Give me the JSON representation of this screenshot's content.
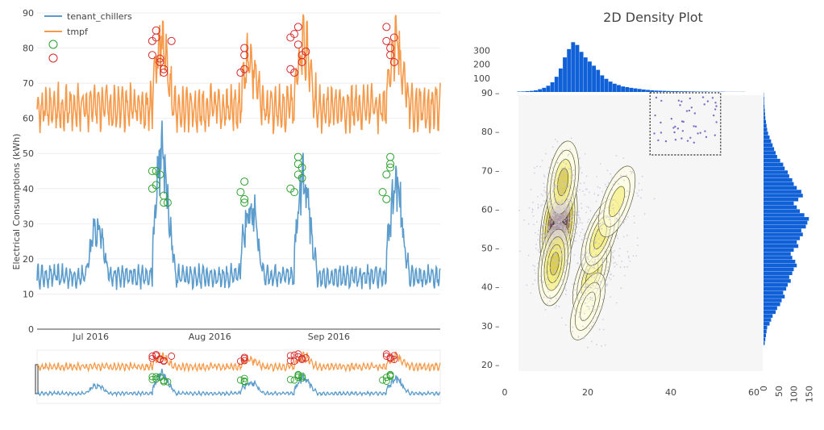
{
  "chart_data": [
    {
      "type": "line",
      "title": "",
      "xlabel": "",
      "ylabel": "Electrical Consumptions (kWh)",
      "ylim": [
        0,
        90
      ],
      "yticks": [
        0,
        10,
        20,
        30,
        40,
        50,
        60,
        70,
        80,
        90
      ],
      "xticks": [
        "Jul 2016",
        "Aug 2016",
        "Sep 2016"
      ],
      "x_range": [
        "2016-06-17",
        "2016-09-30"
      ],
      "grid": true,
      "legend": "top-left",
      "series": [
        {
          "name": "tenant_chillers",
          "color": "#5b9ccc",
          "approx_profile": {
            "base": 15,
            "spikes": [
              [
                "2016-07-18",
                62
              ],
              [
                "2016-08-10",
                44
              ],
              [
                "2016-08-24",
                49
              ],
              [
                "2016-09-17",
                48
              ],
              [
                "2016-07-01",
                33
              ]
            ]
          }
        },
        {
          "name": "tmpf",
          "color": "#f59a4a",
          "approx_profile": {
            "base": 63,
            "amplitude": 6,
            "spikes": [
              [
                "2016-07-18",
                86
              ],
              [
                "2016-08-10",
                80
              ],
              [
                "2016-08-24",
                86
              ],
              [
                "2016-09-17",
                86
              ]
            ]
          }
        }
      ],
      "anomaly_markers": [
        {
          "series": "tenant_chillers",
          "color": "#2ca02c",
          "points": [
            [
              "2016-07-17",
              40
            ],
            [
              "2016-07-17",
              45
            ],
            [
              "2016-07-18",
              41
            ],
            [
              "2016-07-18",
              45
            ],
            [
              "2016-07-19",
              44
            ],
            [
              "2016-07-20",
              38
            ],
            [
              "2016-07-20",
              36
            ],
            [
              "2016-07-21",
              36
            ],
            [
              "2016-08-09",
              39
            ],
            [
              "2016-08-10",
              36
            ],
            [
              "2016-08-10",
              37
            ],
            [
              "2016-08-10",
              42
            ],
            [
              "2016-08-22",
              40
            ],
            [
              "2016-08-23",
              39
            ],
            [
              "2016-08-24",
              47
            ],
            [
              "2016-08-24",
              49
            ],
            [
              "2016-08-24",
              44
            ],
            [
              "2016-08-25",
              43
            ],
            [
              "2016-08-25",
              46
            ],
            [
              "2016-09-15",
              39
            ],
            [
              "2016-09-16",
              37
            ],
            [
              "2016-09-16",
              44
            ],
            [
              "2016-09-17",
              47
            ],
            [
              "2016-09-17",
              49
            ],
            [
              "2016-09-17",
              46
            ]
          ]
        },
        {
          "series": "tmpf",
          "color": "#d62728",
          "points": [
            [
              "2016-07-17",
              82
            ],
            [
              "2016-07-17",
              78
            ],
            [
              "2016-07-18",
              85
            ],
            [
              "2016-07-18",
              83
            ],
            [
              "2016-07-19",
              77
            ],
            [
              "2016-07-19",
              76
            ],
            [
              "2016-07-20",
              74
            ],
            [
              "2016-07-20",
              73
            ],
            [
              "2016-07-22",
              82
            ],
            [
              "2016-08-09",
              73
            ],
            [
              "2016-08-10",
              74
            ],
            [
              "2016-08-10",
              78
            ],
            [
              "2016-08-10",
              80
            ],
            [
              "2016-08-22",
              74
            ],
            [
              "2016-08-22",
              83
            ],
            [
              "2016-08-23",
              73
            ],
            [
              "2016-08-23",
              84
            ],
            [
              "2016-08-24",
              86
            ],
            [
              "2016-08-24",
              81
            ],
            [
              "2016-08-25",
              78
            ],
            [
              "2016-08-25",
              76
            ],
            [
              "2016-08-26",
              79
            ],
            [
              "2016-09-16",
              86
            ],
            [
              "2016-09-16",
              82
            ],
            [
              "2016-09-17",
              80
            ],
            [
              "2016-09-17",
              78
            ],
            [
              "2016-09-18",
              76
            ],
            [
              "2016-09-18",
              83
            ]
          ]
        }
      ],
      "range_slider": true
    },
    {
      "type": "heatmap",
      "subtype": "2d-density-contour-with-marginal-histograms",
      "title": "2D Density Plot",
      "xlim": [
        0,
        60
      ],
      "ylim": [
        18,
        91
      ],
      "xticks": [
        0,
        20,
        40,
        60
      ],
      "yticks": [
        20,
        30,
        40,
        50,
        60,
        70,
        80,
        90
      ],
      "colorscale": [
        "#fffde0",
        "#f2ea62",
        "#c8b430",
        "#8a4e7a",
        "#4b1a60"
      ],
      "density_peaks": [
        {
          "x": 13,
          "y": 56,
          "weight": 1.0
        },
        {
          "x": 12,
          "y": 46,
          "weight": 0.6
        },
        {
          "x": 14,
          "y": 67,
          "weight": 0.55
        },
        {
          "x": 21,
          "y": 43,
          "weight": 0.45
        },
        {
          "x": 23,
          "y": 53,
          "weight": 0.45
        },
        {
          "x": 27,
          "y": 62,
          "weight": 0.35
        },
        {
          "x": 20,
          "y": 35,
          "weight": 0.25
        }
      ],
      "selection_box": {
        "x": [
          35,
          52
        ],
        "y": [
          74,
          90
        ]
      },
      "marginal_x": {
        "ticks": [
          100,
          200,
          300
        ],
        "bins_start": 3,
        "bin_width": 1,
        "counts": [
          3,
          4,
          6,
          8,
          12,
          20,
          30,
          45,
          70,
          110,
          170,
          250,
          310,
          360,
          340,
          290,
          250,
          220,
          190,
          160,
          120,
          95,
          75,
          60,
          50,
          40,
          35,
          30,
          26,
          22,
          18,
          15,
          12,
          10,
          9,
          8,
          7,
          6,
          6,
          5,
          5,
          4,
          4,
          3,
          3,
          3,
          2,
          2,
          2,
          2,
          1,
          1,
          1,
          1,
          1
        ]
      },
      "marginal_y": {
        "ticks": [
          0,
          50,
          100,
          150
        ],
        "bins_start": 25,
        "bin_width": 1,
        "counts": [
          4,
          6,
          8,
          10,
          12,
          20,
          25,
          30,
          40,
          45,
          55,
          60,
          70,
          65,
          75,
          80,
          90,
          85,
          95,
          100,
          110,
          105,
          95,
          90,
          100,
          115,
          110,
          120,
          130,
          125,
          140,
          145,
          150,
          135,
          120,
          110,
          100,
          115,
          130,
          125,
          110,
          100,
          95,
          85,
          80,
          70,
          65,
          55,
          45,
          40,
          35,
          30,
          25,
          20,
          15,
          12,
          10,
          8,
          6,
          5,
          4,
          3,
          2,
          2,
          1
        ]
      }
    }
  ]
}
